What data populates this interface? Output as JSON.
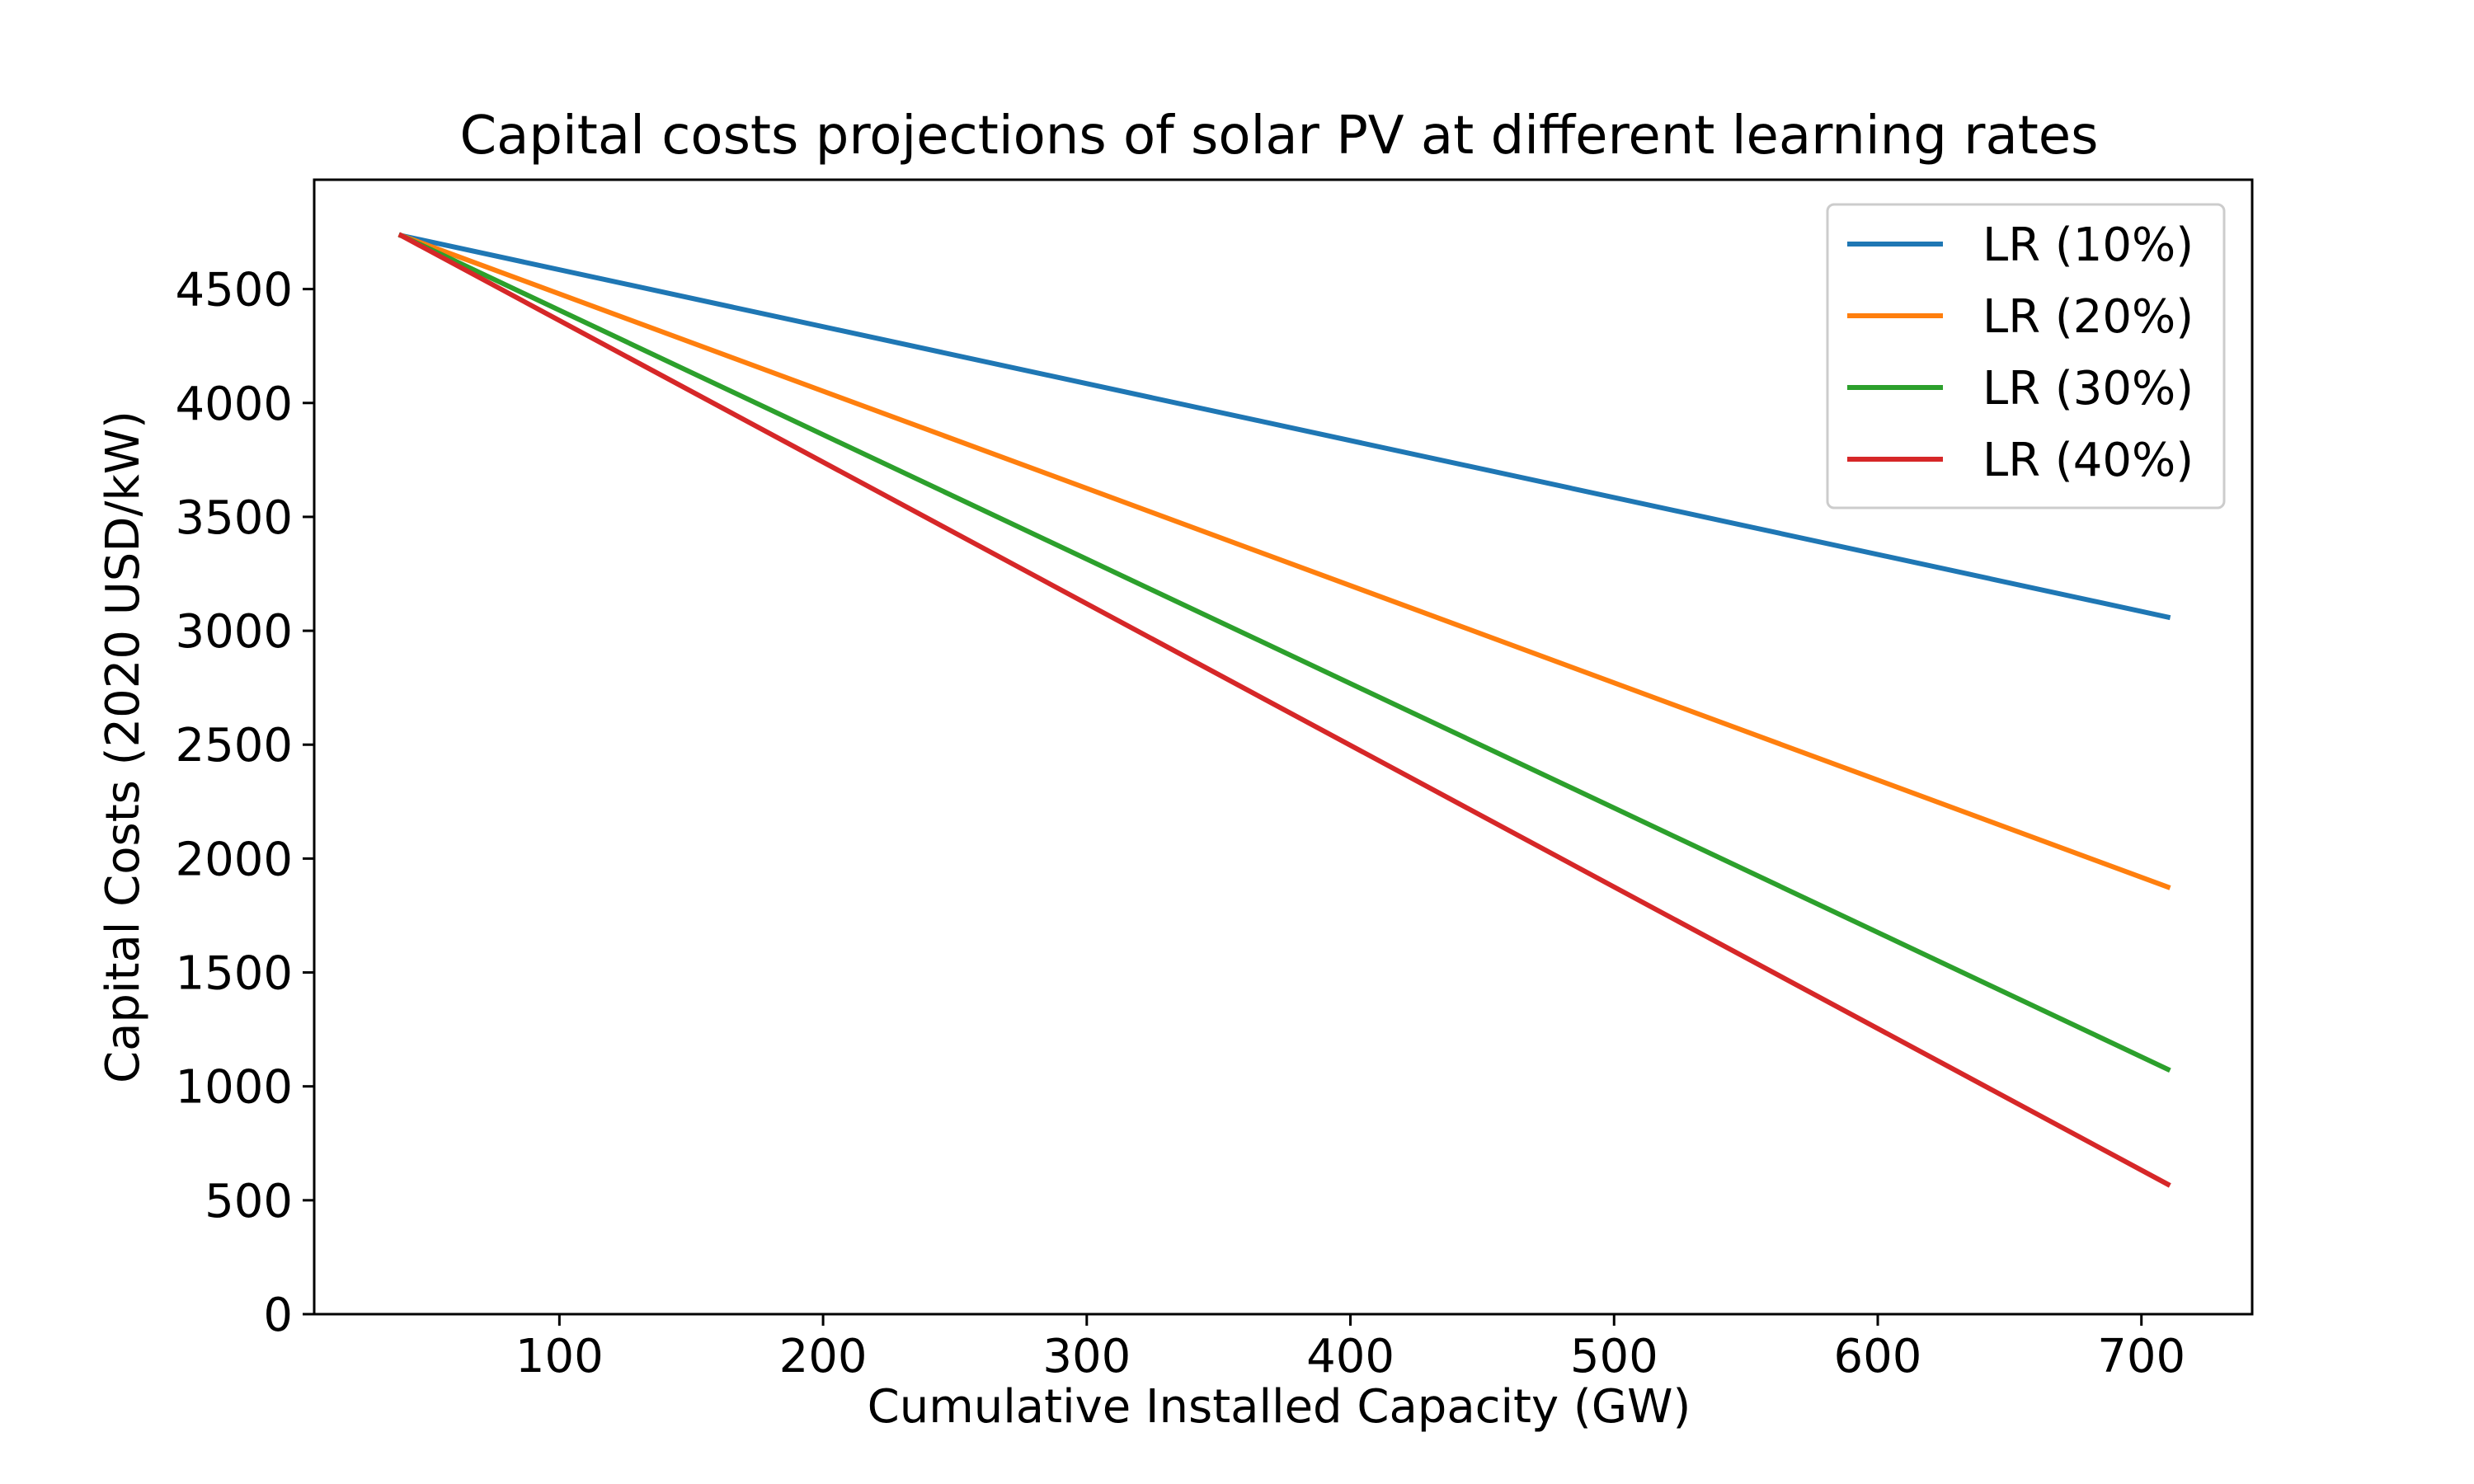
{
  "chart_data": {
    "type": "line",
    "title": "Capital costs projections of solar PV at different learning rates",
    "xlabel": "Cumulative Installed Capacity (GW)",
    "ylabel": "Capital Costs (2020 USD/kW)",
    "xlim": [
      7,
      742
    ],
    "ylim": [
      0,
      4980
    ],
    "xticks": [
      100,
      200,
      300,
      400,
      500,
      600,
      700
    ],
    "yticks": [
      0,
      500,
      1000,
      1500,
      2000,
      2500,
      3000,
      3500,
      4000,
      4500
    ],
    "grid": false,
    "legend_position": "top-right",
    "x": [
      40,
      710
    ],
    "series": [
      {
        "name": "LR (10%)",
        "color": "#1f77b4",
        "values": [
          4735,
          3060
        ]
      },
      {
        "name": "LR (20%)",
        "color": "#ff7f0e",
        "values": [
          4735,
          1875
        ]
      },
      {
        "name": "LR (30%)",
        "color": "#2ca02c",
        "values": [
          4735,
          1075
        ]
      },
      {
        "name": "LR (40%)",
        "color": "#d62728",
        "values": [
          4735,
          570
        ]
      }
    ]
  }
}
